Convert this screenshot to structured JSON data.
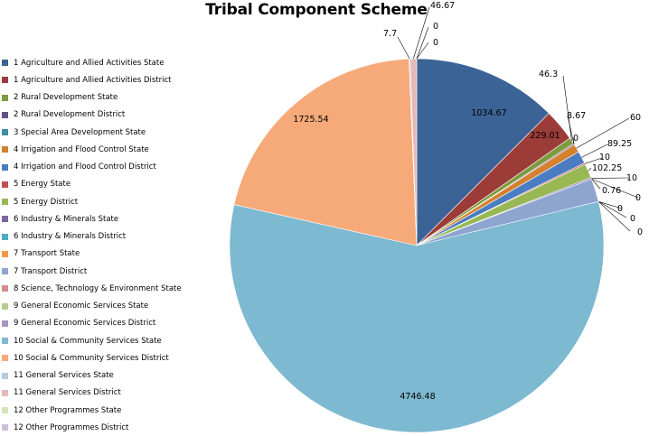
{
  "chart_data": {
    "type": "pie",
    "title": "Tribal Component Scheme",
    "legend_position": "left",
    "slices": [
      {
        "name": "1 Agriculture and Allied Activities State",
        "value": 1034.67,
        "label": "1034.67",
        "color": "#3c6395"
      },
      {
        "name": "1 Agriculture and Allied Activities District",
        "value": 229.01,
        "label": "229.01",
        "color": "#9b3c39"
      },
      {
        "name": "2 Rural Development State",
        "value": 46.3,
        "label": "46.3",
        "color": "#7e9a3e"
      },
      {
        "name": "2 Rural Development District",
        "value": 8.67,
        "label": "8.67",
        "color": "#654f86"
      },
      {
        "name": "3 Special Area Development State",
        "value": 0,
        "label": "0",
        "color": "#3a8fa6"
      },
      {
        "name": "4 Irrigation and Flood Control State",
        "value": 60,
        "label": "60",
        "color": "#d4802f"
      },
      {
        "name": "4 Irrigation and Flood Control District",
        "value": 89.25,
        "label": "89.25",
        "color": "#4a7cc2"
      },
      {
        "name": "5 Energy State",
        "value": 10,
        "label": "10",
        "color": "#c2504d"
      },
      {
        "name": "5 Energy District",
        "value": 102.25,
        "label": "102.25",
        "color": "#98b854"
      },
      {
        "name": "6 Industry & Minerals State",
        "value": 10,
        "label": "10",
        "color": "#8064a2"
      },
      {
        "name": "6 Industry & Minerals District",
        "value": 0.76,
        "label": "0.76",
        "color": "#4aacc5"
      },
      {
        "name": "7 Transport State",
        "value": 0,
        "label": "0",
        "color": "#f79645"
      },
      {
        "name": "7 Transport District",
        "value": 166.89,
        "label": "166.89",
        "color": "#8ea5d0"
      },
      {
        "name": "8 Science, Technology & Environment State",
        "value": 0,
        "label": "0",
        "color": "#d08f8d"
      },
      {
        "name": "9 General Economic Services State",
        "value": 0,
        "label": "0",
        "color": "#b5cd8b"
      },
      {
        "name": "9 General Economic Services District",
        "value": 0,
        "label": "0",
        "color": "#a796bf"
      },
      {
        "name": "10 Social & Community Services State",
        "value": 4746.48,
        "label": "4746.48",
        "color": "#7db9d0"
      },
      {
        "name": "10 Social & Community Services District",
        "value": 1725.54,
        "label": "1725.54",
        "color": "#f6aa7a"
      },
      {
        "name": "11 General Services State",
        "value": 7.7,
        "label": "7.7",
        "color": "#b6c8e3"
      },
      {
        "name": "11 General Services District",
        "value": 46.67,
        "label": "46.67",
        "color": "#e6b9b8"
      },
      {
        "name": "12 Other Programmes State",
        "value": 0,
        "label": "0",
        "color": "#d6e4bc"
      },
      {
        "name": "12 Other Programmes District",
        "value": 0,
        "label": "0",
        "color": "#ccc1da"
      }
    ]
  }
}
